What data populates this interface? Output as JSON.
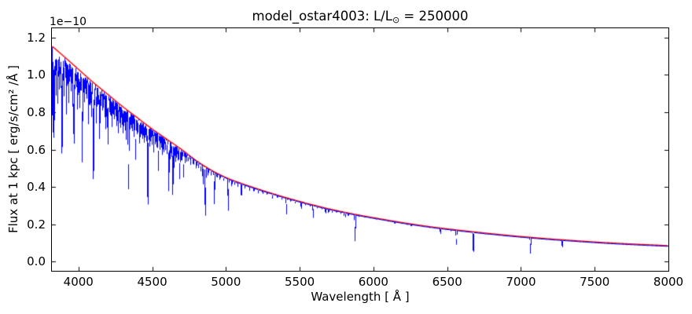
{
  "figure": {
    "title_prefix": "model_ostar4003: L/L",
    "title_sub": "⊙",
    "title_suffix": " = 250000",
    "offset_text": "1e−10",
    "xlabel": "Wavelength [ Å ]",
    "ylabel": "Flux at 1 kpc [ erg/s/cm² /Å ]"
  },
  "colors": {
    "continuum": "#ff0000",
    "spectrum": "#0000ff",
    "axis": "#000000",
    "background": "#ffffff"
  },
  "chart_data": {
    "type": "line",
    "title": "model_ostar4003: L/L⊙ = 250000",
    "xlabel": "Wavelength [ Å ]",
    "ylabel": "Flux at 1 kpc [ erg/s/cm² /Å ]",
    "y_scale_factor": "1e-10",
    "xlim": [
      3820,
      8000
    ],
    "ylim": [
      -0.05,
      1.25
    ],
    "grid": false,
    "legend": null,
    "xticks": [
      4000,
      4500,
      5000,
      5500,
      6000,
      6500,
      7000,
      7500,
      8000
    ],
    "xtick_labels": [
      "4000",
      "4500",
      "5000",
      "5500",
      "6000",
      "6500",
      "7000",
      "7500",
      "8000"
    ],
    "yticks": [
      0.0,
      0.2,
      0.4,
      0.6,
      0.8,
      1.0,
      1.2
    ],
    "ytick_labels": [
      "0.0",
      "0.2",
      "0.4",
      "0.6",
      "0.8",
      "1.0",
      "1.2"
    ],
    "series": [
      {
        "name": "continuum",
        "color": "#ff0000",
        "anchors": {
          "x": [
            3820,
            3900,
            4000,
            4100,
            4200,
            4300,
            4400,
            4500,
            4600,
            4700,
            4800,
            4900,
            5000,
            5100,
            5200,
            5300,
            5400,
            5500,
            5600,
            5700,
            5800,
            5900,
            6000,
            6200,
            6400,
            6600,
            6800,
            7000,
            7200,
            7400,
            7600,
            7800,
            8000
          ],
          "y": [
            1.155,
            1.1,
            1.03,
            0.96,
            0.895,
            0.83,
            0.77,
            0.71,
            0.655,
            0.6,
            0.54,
            0.49,
            0.45,
            0.42,
            0.393,
            0.368,
            0.344,
            0.322,
            0.301,
            0.282,
            0.265,
            0.249,
            0.235,
            0.208,
            0.185,
            0.166,
            0.149,
            0.134,
            0.121,
            0.11,
            0.1,
            0.092,
            0.085
          ]
        }
      },
      {
        "name": "spectrum",
        "color": "#0000ff",
        "derivation": "continuum minus gaussian absorption_lines"
      }
    ],
    "absorption_lines": [
      [
        3826,
        0.4,
        1.8
      ],
      [
        3835,
        0.43,
        2.2
      ],
      [
        3842,
        0.12,
        1.5
      ],
      [
        3848,
        0.22,
        1.5
      ],
      [
        3854,
        0.1,
        1.5
      ],
      [
        3860,
        0.25,
        1.5
      ],
      [
        3865,
        0.12,
        1.5
      ],
      [
        3872,
        0.18,
        1.5
      ],
      [
        3877,
        0.1,
        1.5
      ],
      [
        3883,
        0.15,
        1.5
      ],
      [
        3889,
        0.48,
        2.2
      ],
      [
        3896,
        0.12,
        1.5
      ],
      [
        3903,
        0.2,
        1.5
      ],
      [
        3912,
        0.1,
        1.5
      ],
      [
        3920,
        0.28,
        1.5
      ],
      [
        3927,
        0.12,
        1.5
      ],
      [
        3934,
        0.22,
        1.5
      ],
      [
        3942,
        0.1,
        1.5
      ],
      [
        3950,
        0.15,
        1.5
      ],
      [
        3957,
        0.1,
        1.5
      ],
      [
        3964,
        0.22,
        1.5
      ],
      [
        3970,
        0.4,
        2.4
      ],
      [
        3979,
        0.12,
        1.5
      ],
      [
        3988,
        0.1,
        1.5
      ],
      [
        3995,
        0.22,
        1.5
      ],
      [
        4003,
        0.12,
        1.5
      ],
      [
        4009,
        0.2,
        1.5
      ],
      [
        4017,
        0.1,
        1.5
      ],
      [
        4026,
        0.48,
        2.2
      ],
      [
        4035,
        0.1,
        1.5
      ],
      [
        4042,
        0.15,
        1.5
      ],
      [
        4050,
        0.1,
        1.5
      ],
      [
        4058,
        0.12,
        1.5
      ],
      [
        4069,
        0.25,
        1.5
      ],
      [
        4076,
        0.15,
        1.5
      ],
      [
        4085,
        0.12,
        1.5
      ],
      [
        4089,
        0.2,
        1.5
      ],
      [
        4102,
        0.54,
        2.6
      ],
      [
        4110,
        0.12,
        1.5
      ],
      [
        4121,
        0.22,
        1.5
      ],
      [
        4129,
        0.12,
        1.5
      ],
      [
        4137,
        0.1,
        1.5
      ],
      [
        4144,
        0.3,
        2.0
      ],
      [
        4153,
        0.1,
        1.5
      ],
      [
        4163,
        0.12,
        1.5
      ],
      [
        4170,
        0.1,
        1.5
      ],
      [
        4179,
        0.15,
        1.5
      ],
      [
        4187,
        0.22,
        1.5
      ],
      [
        4195,
        0.12,
        1.5
      ],
      [
        4200,
        0.3,
        2.0
      ],
      [
        4211,
        0.1,
        1.5
      ],
      [
        4220,
        0.12,
        1.5
      ],
      [
        4227,
        0.18,
        1.5
      ],
      [
        4236,
        0.1,
        1.5
      ],
      [
        4244,
        0.12,
        1.5
      ],
      [
        4253,
        0.1,
        1.5
      ],
      [
        4262,
        0.15,
        1.5
      ],
      [
        4271,
        0.2,
        1.5
      ],
      [
        4280,
        0.12,
        1.5
      ],
      [
        4288,
        0.15,
        1.5
      ],
      [
        4296,
        0.12,
        1.5
      ],
      [
        4303,
        0.18,
        1.5
      ],
      [
        4310,
        0.12,
        1.5
      ],
      [
        4317,
        0.15,
        1.5
      ],
      [
        4325,
        0.2,
        1.5
      ],
      [
        4340,
        0.52,
        2.6
      ],
      [
        4350,
        0.12,
        1.5
      ],
      [
        4359,
        0.1,
        1.5
      ],
      [
        4368,
        0.12,
        1.5
      ],
      [
        4379,
        0.15,
        1.5
      ],
      [
        4388,
        0.3,
        2.0
      ],
      [
        4397,
        0.12,
        1.5
      ],
      [
        4404,
        0.1,
        1.5
      ],
      [
        4415,
        0.18,
        1.5
      ],
      [
        4422,
        0.12,
        1.5
      ],
      [
        4430,
        0.1,
        1.5
      ],
      [
        4438,
        0.12,
        1.5
      ],
      [
        4447,
        0.15,
        1.5
      ],
      [
        4454,
        0.1,
        1.5
      ],
      [
        4463,
        0.12,
        1.5
      ],
      [
        4471,
        0.58,
        2.4
      ],
      [
        4482,
        0.15,
        1.5
      ],
      [
        4491,
        0.1,
        1.5
      ],
      [
        4501,
        0.12,
        1.5
      ],
      [
        4511,
        0.18,
        1.5
      ],
      [
        4520,
        0.1,
        1.5
      ],
      [
        4530,
        0.12,
        1.5
      ],
      [
        4542,
        0.3,
        2.0
      ],
      [
        4552,
        0.12,
        1.5
      ],
      [
        4562,
        0.1,
        1.5
      ],
      [
        4571,
        0.15,
        1.5
      ],
      [
        4581,
        0.12,
        1.5
      ],
      [
        4590,
        0.1,
        1.5
      ],
      [
        4601,
        0.12,
        1.5
      ],
      [
        4613,
        0.42,
        2.0
      ],
      [
        4620,
        0.15,
        1.5
      ],
      [
        4631,
        0.12,
        1.5
      ],
      [
        4640,
        0.45,
        2.2
      ],
      [
        4650,
        0.2,
        1.5
      ],
      [
        4658,
        0.15,
        1.5
      ],
      [
        4667,
        0.1,
        1.5
      ],
      [
        4676,
        0.12,
        1.5
      ],
      [
        4686,
        0.28,
        2.0
      ],
      [
        4694,
        0.12,
        1.5
      ],
      [
        4703,
        0.1,
        1.5
      ],
      [
        4713,
        0.24,
        1.8
      ],
      [
        4725,
        0.1,
        1.5
      ],
      [
        4735,
        0.08,
        1.5
      ],
      [
        4745,
        0.06,
        1.5
      ],
      [
        4760,
        0.08,
        1.5
      ],
      [
        4780,
        0.06,
        1.5
      ],
      [
        4800,
        0.08,
        1.5
      ],
      [
        4815,
        0.06,
        1.5
      ],
      [
        4830,
        0.08,
        1.5
      ],
      [
        4845,
        0.2,
        1.8
      ],
      [
        4861,
        0.52,
        2.6
      ],
      [
        4880,
        0.08,
        1.5
      ],
      [
        4900,
        0.06,
        1.5
      ],
      [
        4922,
        0.36,
        2.0
      ],
      [
        4940,
        0.05,
        1.5
      ],
      [
        4960,
        0.06,
        1.5
      ],
      [
        4985,
        0.05,
        1.5
      ],
      [
        5016,
        0.39,
        2.0
      ],
      [
        5040,
        0.08,
        1.5
      ],
      [
        5060,
        0.05,
        1.5
      ],
      [
        5080,
        0.06,
        1.5
      ],
      [
        5105,
        0.16,
        1.8
      ],
      [
        5130,
        0.05,
        1.5
      ],
      [
        5160,
        0.06,
        1.5
      ],
      [
        5190,
        0.05,
        1.5
      ],
      [
        5220,
        0.06,
        1.5
      ],
      [
        5250,
        0.05,
        1.5
      ],
      [
        5280,
        0.04,
        1.5
      ],
      [
        5315,
        0.08,
        1.5
      ],
      [
        5350,
        0.04,
        1.5
      ],
      [
        5380,
        0.05,
        1.5
      ],
      [
        5411,
        0.27,
        1.8
      ],
      [
        5440,
        0.04,
        1.5
      ],
      [
        5470,
        0.05,
        1.5
      ],
      [
        5511,
        0.12,
        1.6
      ],
      [
        5540,
        0.04,
        1.5
      ],
      [
        5570,
        0.04,
        1.5
      ],
      [
        5592,
        0.23,
        1.8
      ],
      [
        5620,
        0.04,
        1.5
      ],
      [
        5650,
        0.04,
        1.5
      ],
      [
        5676,
        0.1,
        1.6
      ],
      [
        5696,
        0.08,
        1.6
      ],
      [
        5720,
        0.06,
        1.5
      ],
      [
        5750,
        0.04,
        1.5
      ],
      [
        5780,
        0.05,
        1.5
      ],
      [
        5800,
        0.08,
        1.5
      ],
      [
        5812,
        0.1,
        1.6
      ],
      [
        5830,
        0.06,
        1.5
      ],
      [
        5876,
        0.58,
        2.2
      ],
      [
        5900,
        0.04,
        1.5
      ],
      [
        5940,
        0.03,
        1.5
      ],
      [
        5980,
        0.03,
        1.5
      ],
      [
        6020,
        0.04,
        1.5
      ],
      [
        6060,
        0.03,
        1.5
      ],
      [
        6100,
        0.03,
        1.5
      ],
      [
        6145,
        0.06,
        1.6
      ],
      [
        6190,
        0.03,
        1.5
      ],
      [
        6230,
        0.04,
        1.5
      ],
      [
        6257,
        0.06,
        1.6
      ],
      [
        6300,
        0.03,
        1.5
      ],
      [
        6340,
        0.03,
        1.5
      ],
      [
        6380,
        0.04,
        1.5
      ],
      [
        6420,
        0.03,
        1.5
      ],
      [
        6455,
        0.18,
        1.8
      ],
      [
        6500,
        0.03,
        1.5
      ],
      [
        6527,
        0.06,
        1.6
      ],
      [
        6563,
        0.47,
        2.2
      ],
      [
        6600,
        0.03,
        1.5
      ],
      [
        6640,
        0.03,
        1.5
      ],
      [
        6678,
        0.68,
        2.0
      ],
      [
        6720,
        0.03,
        1.5
      ],
      [
        6760,
        0.03,
        1.5
      ],
      [
        6800,
        0.04,
        1.5
      ],
      [
        6850,
        0.03,
        1.5
      ],
      [
        6900,
        0.04,
        1.5
      ],
      [
        6950,
        0.03,
        1.5
      ],
      [
        7000,
        0.03,
        1.5
      ],
      [
        7065,
        0.68,
        2.0
      ],
      [
        7120,
        0.03,
        1.5
      ],
      [
        7170,
        0.03,
        1.5
      ],
      [
        7220,
        0.03,
        1.5
      ],
      [
        7281,
        0.35,
        1.8
      ],
      [
        7340,
        0.03,
        1.5
      ],
      [
        7400,
        0.03,
        1.5
      ],
      [
        7460,
        0.04,
        1.5
      ],
      [
        7520,
        0.03,
        1.5
      ],
      [
        7590,
        0.06,
        1.6
      ],
      [
        7650,
        0.03,
        1.5
      ],
      [
        7720,
        0.04,
        1.5
      ],
      [
        7780,
        0.03,
        1.5
      ],
      [
        7850,
        0.03,
        1.5
      ],
      [
        7920,
        0.03,
        1.5
      ],
      [
        7980,
        0.03,
        1.5
      ]
    ]
  }
}
